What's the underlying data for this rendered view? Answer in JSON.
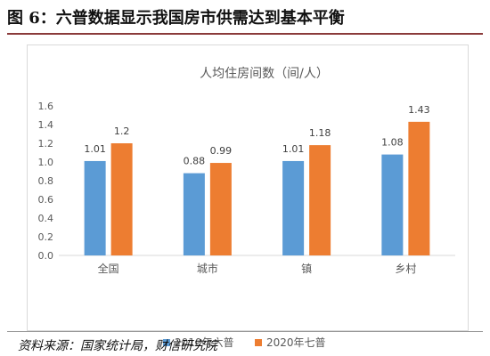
{
  "figure_title": "图 6：六普数据显示我国房市供需达到基本平衡",
  "source": "资料来源：国家统计局，财信研究院",
  "colors": {
    "series_2010": "#5b9bd5",
    "series_2020": "#ed7d31"
  },
  "chart_data": {
    "type": "bar",
    "title": "人均住房间数（间/人）",
    "categories": [
      "全国",
      "城市",
      "镇",
      "乡村"
    ],
    "series": [
      {
        "name": "2010年六普",
        "values": [
          1.01,
          0.88,
          1.01,
          1.08
        ],
        "labels": [
          "1.01",
          "0.88",
          "1.01",
          "1.08"
        ]
      },
      {
        "name": "2020年七普",
        "values": [
          1.2,
          0.99,
          1.18,
          1.43
        ],
        "labels": [
          "1.2",
          "0.99",
          "1.18",
          "1.43"
        ]
      }
    ],
    "ylim": [
      0,
      1.6
    ],
    "yticks": [
      "0.0",
      "0.2",
      "0.4",
      "0.6",
      "0.8",
      "1.0",
      "1.2",
      "1.4",
      "1.6"
    ],
    "grid": false,
    "legend_position": "bottom"
  }
}
